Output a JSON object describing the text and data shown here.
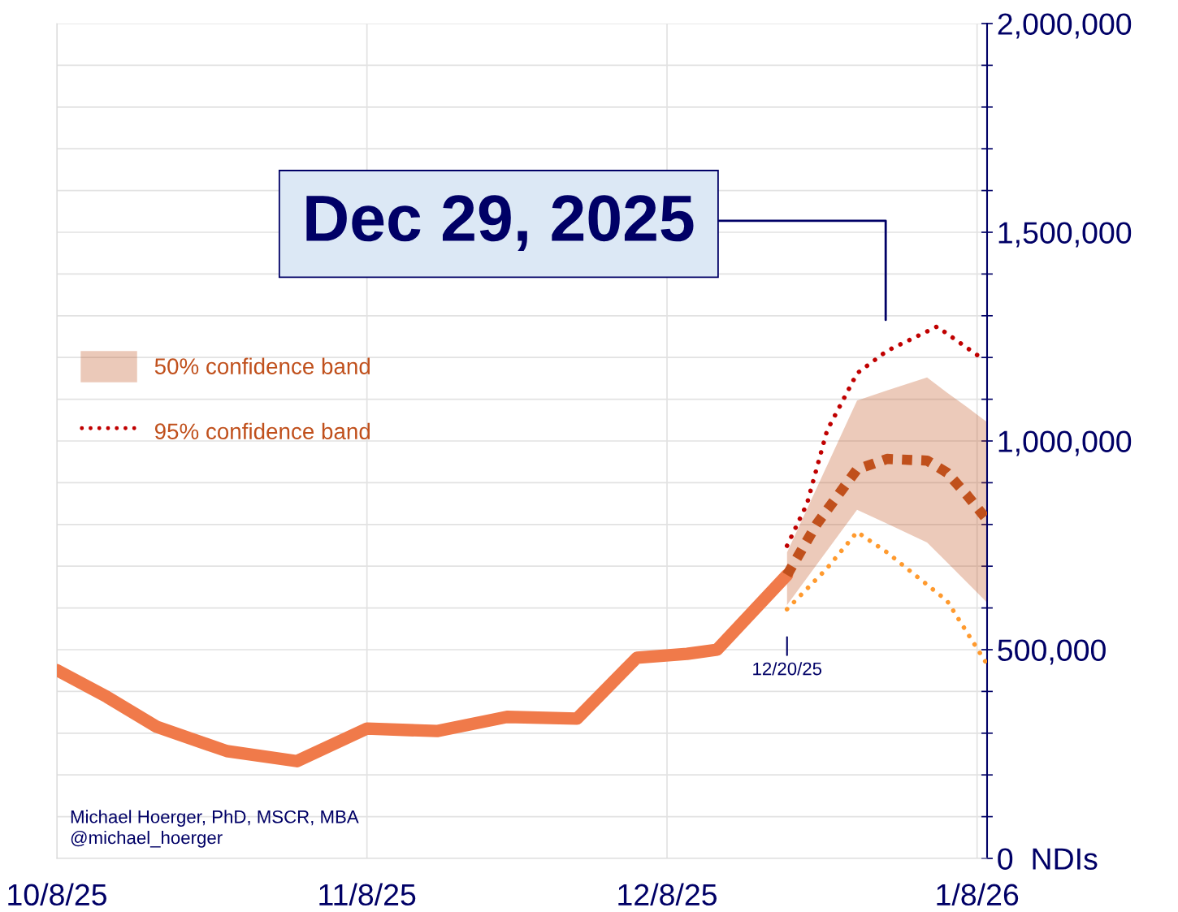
{
  "chart_data": {
    "type": "line",
    "series": [
      {
        "color": "#f07a4a",
        "line_style": "solid",
        "marker": "none",
        "x": [
          "2025-10-08",
          "2025-10-13",
          "2025-10-18",
          "2025-10-25",
          "2025-11-01",
          "2025-11-08",
          "2025-11-15",
          "2025-11-22",
          "2025-11-29",
          "2025-12-05",
          "2025-12-10",
          "2025-12-13",
          "2025-12-20"
        ],
        "values": [
          451000,
          387000,
          315000,
          257000,
          233000,
          311000,
          305000,
          339000,
          335000,
          481000,
          490000,
          500000,
          679000
        ]
      },
      {
        "name": "50% confidence band",
        "color": "#c0501c",
        "line_style": "dashed",
        "marker": "none",
        "x": [
          "2025-12-20",
          "2025-12-23",
          "2025-12-27",
          "2025-12-30",
          "2026-01-03",
          "2026-01-05",
          "2026-01-07",
          "2026-01-09"
        ],
        "values": [
          679000,
          802000,
          932000,
          957000,
          953000,
          924000,
          870000,
          811000
        ],
        "lower": [
          607000,
          705000,
          835000,
          802000,
          757000,
          709000,
          661000,
          613000
        ],
        "upper": [
          733000,
          889000,
          1097000,
          1121000,
          1152000,
          1116000,
          1081000,
          1045000
        ]
      },
      {
        "name": "95% confidence band",
        "color": "#c00000",
        "line_style": "dotted",
        "marker": "none",
        "x": [
          "2025-12-20",
          "2025-12-22",
          "2025-12-24",
          "2025-12-27",
          "2025-12-30",
          "2026-01-04",
          "2026-01-08"
        ],
        "values": [
          749000,
          850000,
          1025000,
          1162000,
          1216000,
          1274000,
          1206000
        ]
      },
      {
        "color": "#ff9a2e",
        "line_style": "dotted",
        "marker": "none",
        "x": [
          "2025-12-20",
          "2025-12-24",
          "2025-12-27",
          "2025-12-30",
          "2026-01-05",
          "2026-01-09"
        ],
        "values": [
          597000,
          695000,
          782000,
          733000,
          617000,
          465000
        ]
      }
    ],
    "xlim": [
      "2025-10-08",
      "2026-01-09"
    ],
    "xticks": [
      {
        "value": "2025-10-08",
        "label": "10/8/25"
      },
      {
        "value": "2025-11-08",
        "label": "11/8/25"
      },
      {
        "value": "2025-12-08",
        "label": "12/8/25"
      },
      {
        "value": "2026-01-08",
        "label": "1/8/26"
      }
    ],
    "ylim": [
      0,
      2000000
    ],
    "yticks": [
      {
        "value": 0,
        "label": "0  NDIs"
      },
      {
        "value": 100000,
        "label": null
      },
      {
        "value": 200000,
        "label": null
      },
      {
        "value": 300000,
        "label": null
      },
      {
        "value": 400000,
        "label": null
      },
      {
        "value": 500000,
        "label": "500,000"
      },
      {
        "value": 600000,
        "label": null
      },
      {
        "value": 700000,
        "label": null
      },
      {
        "value": 800000,
        "label": null
      },
      {
        "value": 900000,
        "label": null
      },
      {
        "value": 1000000,
        "label": "1,000,000"
      },
      {
        "value": 1100000,
        "label": null
      },
      {
        "value": 1200000,
        "label": null
      },
      {
        "value": 1300000,
        "label": null
      },
      {
        "value": 1400000,
        "label": null
      },
      {
        "value": 1500000,
        "label": "1,500,000"
      },
      {
        "value": 1600000,
        "label": null
      },
      {
        "value": 1700000,
        "label": null
      },
      {
        "value": 1800000,
        "label": null
      },
      {
        "value": 1900000,
        "label": null
      },
      {
        "value": 2000000,
        "label": "2,000,000"
      }
    ],
    "grid": true,
    "legend": "left",
    "annotations": [
      "Dec 29, 2025",
      "12/20/25",
      "Michael Hoerger, PhD, MSCR, MBA",
      "@michael_hoerger"
    ]
  }
}
